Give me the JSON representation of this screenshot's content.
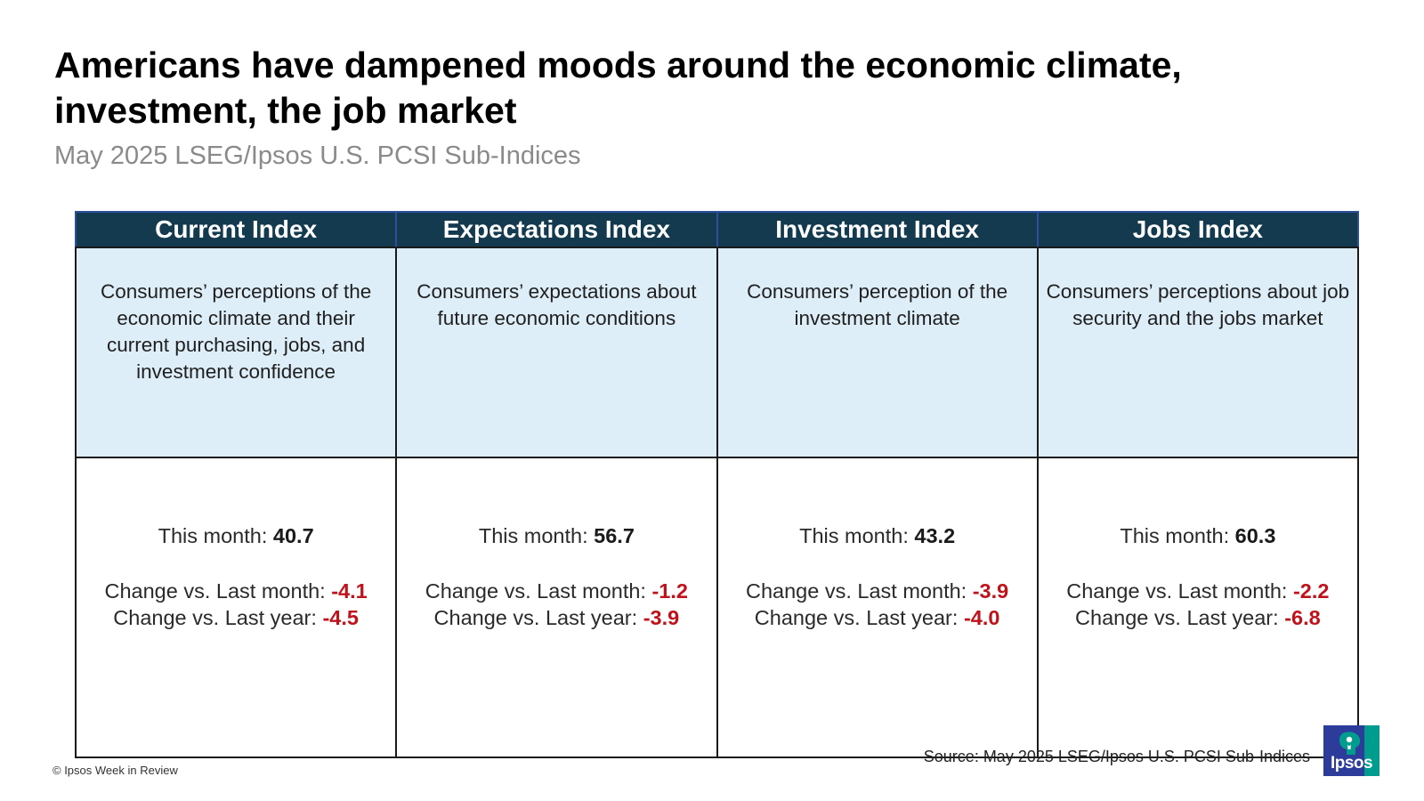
{
  "header": {
    "title": "Americans have dampened moods around the economic climate, investment, the job market",
    "subtitle": "May 2025 LSEG/Ipsos U.S. PCSI Sub-Indices"
  },
  "labels": {
    "this_month": "This month:",
    "change_last_month": "Change vs. Last month:",
    "change_last_year": "Change vs. Last year:"
  },
  "indices": [
    {
      "name": "Current Index",
      "description": "Consumers’ perceptions of the economic climate and their current purchasing, jobs, and investment confidence",
      "this_month": "40.7",
      "change_last_month": "-4.1",
      "change_last_year": "-4.5"
    },
    {
      "name": "Expectations Index",
      "description": "Consumers’ expectations about future economic conditions",
      "this_month": "56.7",
      "change_last_month": "-1.2",
      "change_last_year": "-3.9"
    },
    {
      "name": "Investment Index",
      "description": "Consumers’ perception of the investment climate",
      "this_month": "43.2",
      "change_last_month": "-3.9",
      "change_last_year": "-4.0"
    },
    {
      "name": "Jobs Index",
      "description": "Consumers’ perceptions about job security and the jobs market",
      "this_month": "60.3",
      "change_last_month": "-2.2",
      "change_last_year": "-6.8"
    }
  ],
  "footer": {
    "copyright": "© Ipsos Week in Review",
    "source": "Source: May 2025 LSEG/Ipsos U.S. PCSI Sub-Indices",
    "logo_text": "Ipsos"
  },
  "colors": {
    "header_bg": "#143a4f",
    "description_bg": "#ddeef8",
    "negative_value": "#c0121b",
    "logo_blue": "#2d3b9b",
    "logo_teal": "#009d8f"
  }
}
